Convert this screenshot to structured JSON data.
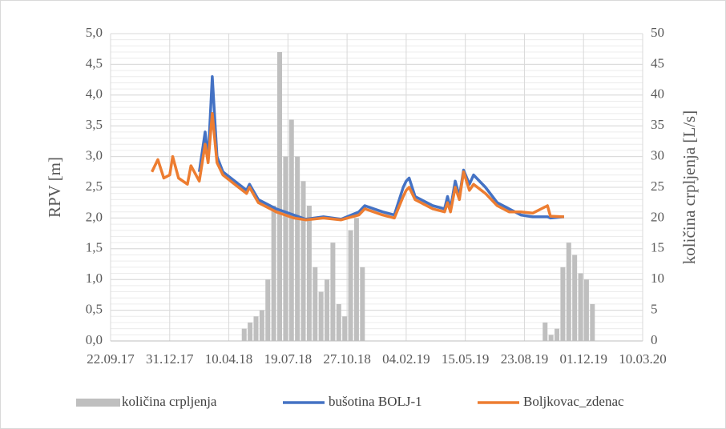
{
  "chart_data": {
    "type": "line",
    "y_label": "RPV [m]",
    "y2_label": "količina crpljenja [L/s]",
    "xlim": [
      "2017-09-22",
      "2020-03-10"
    ],
    "xticks": [
      {
        "value": "2017-09-22",
        "label": "22.09.17"
      },
      {
        "value": "2017-12-31",
        "label": "31.12.17"
      },
      {
        "value": "2018-04-10",
        "label": "10.04.18"
      },
      {
        "value": "2018-07-19",
        "label": "19.07.18"
      },
      {
        "value": "2018-10-27",
        "label": "27.10.18"
      },
      {
        "value": "2019-02-04",
        "label": "04.02.19"
      },
      {
        "value": "2019-05-15",
        "label": "15.05.19"
      },
      {
        "value": "2019-08-23",
        "label": "23.08.19"
      },
      {
        "value": "2019-12-01",
        "label": "01.12.19"
      },
      {
        "value": "2020-03-10",
        "label": "10.03.20"
      }
    ],
    "ylim": [
      0,
      5
    ],
    "yticks": [
      {
        "value": 0,
        "label": "0,0"
      },
      {
        "value": 0.5,
        "label": "0,5"
      },
      {
        "value": 1,
        "label": "1,0"
      },
      {
        "value": 1.5,
        "label": "1,5"
      },
      {
        "value": 2,
        "label": "2,0"
      },
      {
        "value": 2.5,
        "label": "2,5"
      },
      {
        "value": 3,
        "label": "3,0"
      },
      {
        "value": 3.5,
        "label": "3,5"
      },
      {
        "value": 4,
        "label": "4,0"
      },
      {
        "value": 4.5,
        "label": "4,5"
      },
      {
        "value": 5,
        "label": "5,0"
      }
    ],
    "y_minor_step": 0.1,
    "y2lim": [
      0,
      50
    ],
    "y2ticks": [
      0,
      5,
      10,
      15,
      20,
      25,
      30,
      35,
      40,
      45,
      50
    ],
    "grid": true,
    "legend": "bottom",
    "x": [
      "2017-12-01",
      "2017-12-11",
      "2017-12-21",
      "2017-12-31",
      "2018-01-05",
      "2018-01-15",
      "2018-01-30",
      "2018-02-05",
      "2018-02-19",
      "2018-03-01",
      "2018-03-06",
      "2018-03-13",
      "2018-03-21",
      "2018-03-31",
      "2018-04-20",
      "2018-05-10",
      "2018-05-15",
      "2018-05-30",
      "2018-06-29",
      "2018-07-29",
      "2018-08-18",
      "2018-09-17",
      "2018-10-17",
      "2018-11-16",
      "2018-11-26",
      "2018-12-26",
      "2019-01-15",
      "2019-01-30",
      "2019-02-04",
      "2019-02-09",
      "2019-02-19",
      "2019-03-21",
      "2019-04-10",
      "2019-04-15",
      "2019-04-20",
      "2019-04-28",
      "2019-05-05",
      "2019-05-12",
      "2019-05-22",
      "2019-05-29",
      "2019-06-18",
      "2019-07-08",
      "2019-07-28",
      "2019-08-17",
      "2019-09-06",
      "2019-10-01",
      "2019-10-06",
      "2019-10-29"
    ],
    "series": [
      {
        "name": "količina crpljenja",
        "type": "bar",
        "axis": "y2",
        "color": "#bfbfbf",
        "x": [
          "2018-05-06",
          "2018-05-16",
          "2018-05-26",
          "2018-06-05",
          "2018-06-15",
          "2018-06-25",
          "2018-07-05",
          "2018-07-15",
          "2018-07-25",
          "2018-08-04",
          "2018-08-14",
          "2018-08-24",
          "2018-09-03",
          "2018-09-13",
          "2018-09-23",
          "2018-10-03",
          "2018-10-13",
          "2018-10-23",
          "2018-11-02",
          "2018-11-12",
          "2018-11-22",
          "2019-09-27",
          "2019-10-07",
          "2019-10-17",
          "2019-10-27",
          "2019-11-06",
          "2019-11-16",
          "2019-11-26",
          "2019-12-06",
          "2019-12-16"
        ],
        "values": [
          2,
          3,
          4,
          5,
          10,
          22,
          47,
          30,
          36,
          30,
          26,
          22,
          12,
          8,
          10,
          16,
          6,
          4,
          18,
          20,
          12,
          3,
          1,
          2,
          12,
          16,
          14,
          11,
          10,
          6
        ]
      },
      {
        "name": "bušotina BOLJ-1",
        "type": "line",
        "color": "#4472c4",
        "values": [
          null,
          null,
          null,
          null,
          null,
          null,
          null,
          null,
          2.75,
          3.4,
          2.95,
          4.3,
          3.0,
          2.75,
          2.6,
          2.45,
          2.55,
          2.3,
          2.15,
          2.05,
          1.98,
          2.02,
          1.98,
          2.1,
          2.2,
          2.1,
          2.05,
          2.5,
          2.6,
          2.65,
          2.35,
          2.2,
          2.15,
          2.35,
          2.15,
          2.6,
          2.35,
          2.78,
          2.55,
          2.7,
          2.5,
          2.25,
          2.15,
          2.05,
          2.02,
          2.02,
          2.0,
          2.02
        ]
      },
      {
        "name": "Boljkovac_zdenac",
        "type": "line",
        "color": "#ed7d31",
        "values": [
          2.75,
          2.95,
          2.65,
          2.7,
          3.0,
          2.65,
          2.55,
          2.85,
          2.6,
          3.2,
          2.9,
          3.7,
          2.9,
          2.7,
          2.55,
          2.4,
          2.5,
          2.25,
          2.1,
          2.0,
          1.97,
          2.0,
          1.97,
          2.05,
          2.15,
          2.05,
          2.0,
          2.35,
          2.45,
          2.5,
          2.3,
          2.15,
          2.1,
          2.25,
          2.1,
          2.5,
          2.3,
          2.75,
          2.45,
          2.55,
          2.4,
          2.2,
          2.1,
          2.1,
          2.08,
          2.2,
          2.03,
          2.02
        ]
      }
    ]
  }
}
